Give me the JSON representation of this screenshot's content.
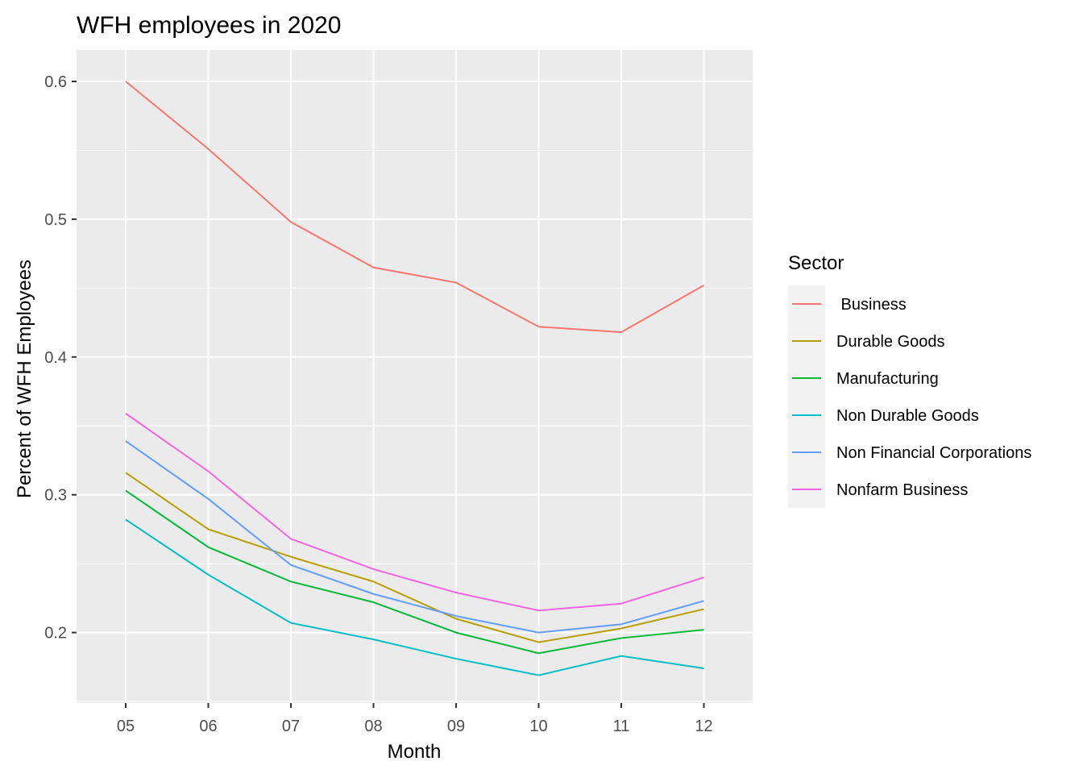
{
  "chart_data": {
    "type": "line",
    "title": "WFH employees in 2020",
    "xlabel": "Month",
    "ylabel": "Percent of WFH Employees",
    "categories": [
      "05",
      "06",
      "07",
      "08",
      "09",
      "10",
      "11",
      "12"
    ],
    "ylim": [
      0.15,
      0.62
    ],
    "yticks": [
      0.2,
      0.3,
      0.4,
      0.5,
      0.6
    ],
    "ytick_labels": [
      "0.2",
      "0.3",
      "0.4",
      "0.5",
      "0.6"
    ],
    "grid": true,
    "legend": {
      "title": "Sector",
      "position": "right"
    },
    "series": [
      {
        "name": " Business",
        "color": "#F8766D",
        "values": [
          0.6,
          0.551,
          0.498,
          0.465,
          0.454,
          0.422,
          0.418,
          0.452
        ]
      },
      {
        "name": "Durable Goods",
        "color": "#B79F00",
        "values": [
          0.316,
          0.275,
          0.255,
          0.237,
          0.21,
          0.193,
          0.203,
          0.217
        ]
      },
      {
        "name": "Manufacturing",
        "color": "#00BA38",
        "values": [
          0.303,
          0.262,
          0.237,
          0.222,
          0.2,
          0.185,
          0.196,
          0.202
        ]
      },
      {
        "name": "Non Durable Goods",
        "color": "#00BFC4",
        "values": [
          0.282,
          0.242,
          0.207,
          0.195,
          0.181,
          0.169,
          0.183,
          0.174
        ]
      },
      {
        "name": "Non Financial Corporations",
        "color": "#619CFF",
        "values": [
          0.339,
          0.297,
          0.249,
          0.228,
          0.212,
          0.2,
          0.206,
          0.223
        ]
      },
      {
        "name": "Nonfarm Business",
        "color": "#F564E3",
        "values": [
          0.359,
          0.317,
          0.268,
          0.246,
          0.229,
          0.216,
          0.221,
          0.24
        ]
      }
    ]
  }
}
